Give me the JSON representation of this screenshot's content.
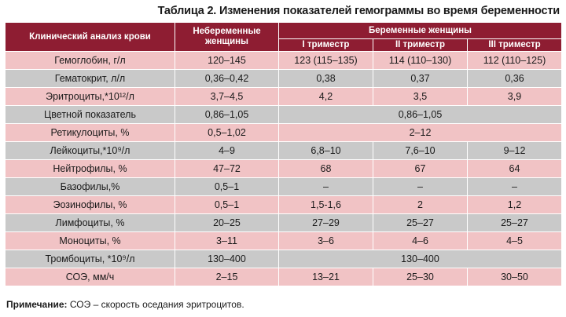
{
  "caption": "Таблица 2. Изменения показателей гемограммы во время беременности",
  "header": {
    "col_analysis": "Клинический анализ крови",
    "col_nonpregnant": "Небеременные женщины",
    "col_pregnant": "Беременные женщины",
    "trimesters": [
      "I триместр",
      "II триместр",
      "III триместр"
    ]
  },
  "rows": [
    {
      "name": "Гемоглобин, г/л",
      "nonpregnant": "120–145",
      "t1": "123 (115–135)",
      "t2": "114 (110–130)",
      "t3": "112 (110–125)"
    },
    {
      "name": "Гематокрит, л/л",
      "nonpregnant": "0,36–0,42",
      "t1": "0,38",
      "t2": "0,37",
      "t3": "0,36"
    },
    {
      "name": "Эритроциты,*10¹²/л",
      "nonpregnant": "3,7–4,5",
      "t1": "4,2",
      "t2": "3,5",
      "t3": "3,9"
    },
    {
      "name": "Цветной показатель",
      "nonpregnant": "0,86–1,05",
      "merged": "0,86–1,05"
    },
    {
      "name": "Ретикулоциты, %",
      "nonpregnant": "0,5–1,02",
      "merged": "2–12"
    },
    {
      "name": "Лейкоциты,*10⁹/л",
      "nonpregnant": "4–9",
      "t1": "6,8–10",
      "t2": "7,6–10",
      "t3": "9–12"
    },
    {
      "name": "Нейтрофилы, %",
      "nonpregnant": "47–72",
      "t1": "68",
      "t2": "67",
      "t3": "64"
    },
    {
      "name": "Базофилы,%",
      "nonpregnant": "0,5–1",
      "t1": "–",
      "t2": "–",
      "t3": "–"
    },
    {
      "name": "Эозинофилы, %",
      "nonpregnant": "0,5–1",
      "t1": "1,5-1,6",
      "t2": "2",
      "t3": "1,2"
    },
    {
      "name": "Лимфоциты, %",
      "nonpregnant": "20–25",
      "t1": "27–29",
      "t2": "25–27",
      "t3": "25–27"
    },
    {
      "name": "Моноциты, %",
      "nonpregnant": "3–11",
      "t1": "3–6",
      "t2": "4–6",
      "t3": "4–5"
    },
    {
      "name": "Тромбоциты, *10⁹/л",
      "nonpregnant": "130–400",
      "merged": "130–400"
    },
    {
      "name": "СОЭ, мм/ч",
      "nonpregnant": "2–15",
      "t1": "13–21",
      "t2": "25–30",
      "t3": "30–50"
    }
  ],
  "note": {
    "label": "Примечание:",
    "text": "СОЭ – скорость оседания эритроцитов."
  }
}
